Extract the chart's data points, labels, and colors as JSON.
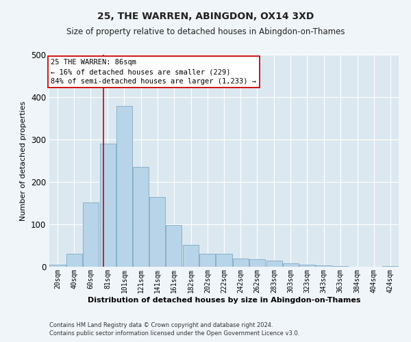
{
  "title": "25, THE WARREN, ABINGDON, OX14 3XD",
  "subtitle": "Size of property relative to detached houses in Abingdon-on-Thames",
  "xlabel": "Distribution of detached houses by size in Abingdon-on-Thames",
  "ylabel": "Number of detached properties",
  "footnote1": "Contains HM Land Registry data © Crown copyright and database right 2024.",
  "footnote2": "Contains public sector information licensed under the Open Government Licence v3.0.",
  "annotation_title": "25 THE WARREN: 86sqm",
  "annotation_line1": "← 16% of detached houses are smaller (229)",
  "annotation_line2": "84% of semi-detached houses are larger (1,233) →",
  "bar_left_edges": [
    20,
    40,
    60,
    81,
    101,
    121,
    141,
    161,
    182,
    202,
    222,
    242,
    262,
    283,
    303,
    323,
    343,
    363,
    384,
    404,
    424
  ],
  "bar_heights": [
    5,
    30,
    152,
    291,
    379,
    235,
    165,
    98,
    52,
    30,
    30,
    20,
    18,
    14,
    8,
    5,
    3,
    1,
    0,
    0,
    2
  ],
  "bar_widths": [
    20,
    20,
    20,
    20,
    20,
    20,
    20,
    20,
    20,
    20,
    20,
    20,
    20,
    20,
    20,
    20,
    20,
    20,
    20,
    20,
    20
  ],
  "tick_labels": [
    "20sqm",
    "40sqm",
    "60sqm",
    "81sqm",
    "101sqm",
    "121sqm",
    "141sqm",
    "161sqm",
    "182sqm",
    "202sqm",
    "222sqm",
    "242sqm",
    "262sqm",
    "283sqm",
    "303sqm",
    "323sqm",
    "343sqm",
    "363sqm",
    "384sqm",
    "404sqm",
    "424sqm"
  ],
  "bar_color": "#b8d4e8",
  "bar_edge_color": "#7aaac8",
  "fig_bg_color": "#f0f5f9",
  "plot_bg_color": "#dce8f0",
  "grid_color": "#ffffff",
  "vline_x": 86,
  "vline_color": "#cc0000",
  "ylim": [
    0,
    500
  ],
  "xlim": [
    20,
    444
  ],
  "annotation_box_color": "#ffffff",
  "annotation_box_edge": "#cc0000",
  "title_fontsize": 10,
  "subtitle_fontsize": 8.5,
  "xlabel_fontsize": 8,
  "ylabel_fontsize": 8,
  "tick_fontsize": 7,
  "annotation_fontsize": 7.5,
  "footnote_fontsize": 6
}
